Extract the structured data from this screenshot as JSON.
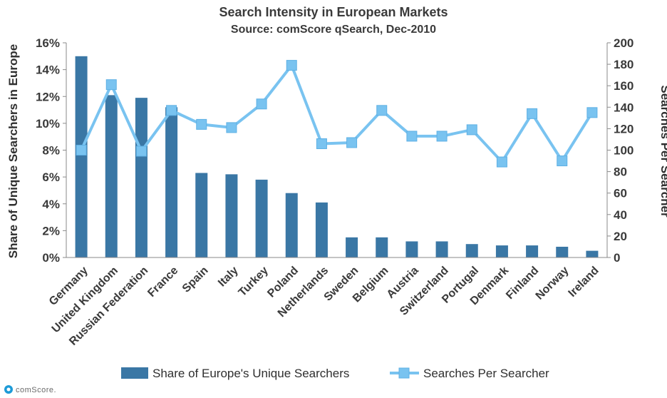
{
  "chart_data": {
    "type": "bar",
    "title": "Search Intensity in European Markets",
    "subtitle": "Source: comScore qSearch, Dec-2010",
    "categories": [
      "Germany",
      "United Kingdom",
      "Russian Federation",
      "France",
      "Spain",
      "Italy",
      "Turkey",
      "Poland",
      "Netherlands",
      "Sweden",
      "Belgium",
      "Austria",
      "Switzerland",
      "Portugal",
      "Denmark",
      "Finland",
      "Norway",
      "Ireland"
    ],
    "series": [
      {
        "name": "Share of Europe's Unique Searchers",
        "type": "bar",
        "axis": "left",
        "color": "#3a77a5",
        "values": [
          15.0,
          12.1,
          11.9,
          11.2,
          6.3,
          6.2,
          5.8,
          4.8,
          4.1,
          1.5,
          1.5,
          1.2,
          1.2,
          1.0,
          0.9,
          0.9,
          0.8,
          0.5
        ]
      },
      {
        "name": "Searches Per Searcher",
        "type": "line",
        "axis": "right",
        "color": "#79c3f0",
        "values": [
          100,
          161,
          99,
          137,
          124,
          121,
          143,
          179,
          106,
          107,
          137,
          113,
          113,
          119,
          89,
          134,
          90,
          135
        ]
      }
    ],
    "ylabel": "Share of Unique Searchers in Europe",
    "ylabel_right": "Searches Per Searcher",
    "ylim": [
      0,
      16
    ],
    "ylim_right": [
      0,
      200
    ],
    "yticks": [
      "0%",
      "2%",
      "4%",
      "6%",
      "8%",
      "10%",
      "12%",
      "14%",
      "16%"
    ],
    "yticks_right": [
      "0",
      "20",
      "40",
      "60",
      "80",
      "100",
      "120",
      "140",
      "160",
      "180",
      "200"
    ],
    "grid": false,
    "legend_position": "bottom"
  },
  "footer": {
    "logo_text": "comScore."
  }
}
